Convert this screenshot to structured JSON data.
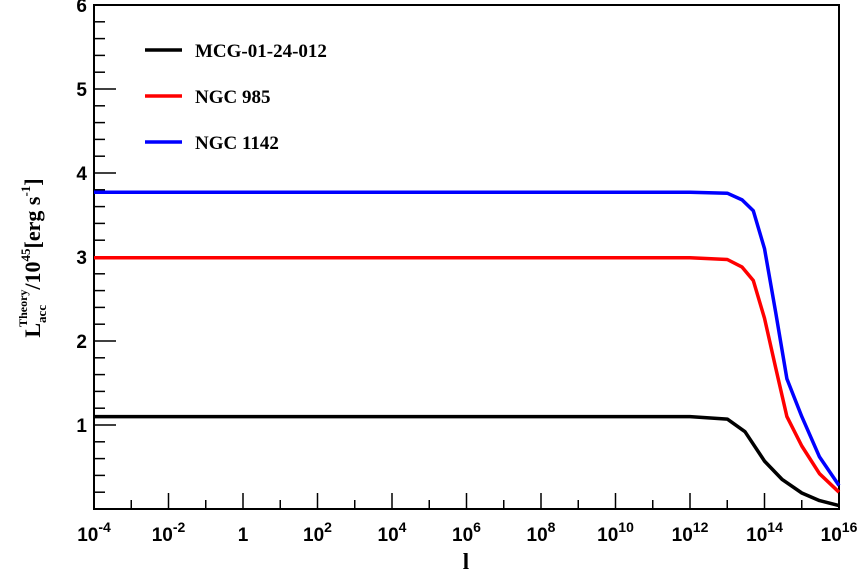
{
  "chart_data": {
    "type": "line",
    "xlabel": "l",
    "ylabel": {
      "main": "L",
      "sub": "acc",
      "sup": "Theory",
      "rest": "/10",
      "exp": "45",
      "unit": "[erg s",
      "unit_exp": "-1",
      "close": "]"
    },
    "xscale": "log",
    "xlim": [
      0.0001,
      1e+16
    ],
    "ylim": [
      0,
      6
    ],
    "x_ticks": [
      {
        "value": 0.0001,
        "base": "10",
        "exp": "-4"
      },
      {
        "value": 0.01,
        "base": "10",
        "exp": "-2"
      },
      {
        "value": 1,
        "base": "1",
        "exp": ""
      },
      {
        "value": 100.0,
        "base": "10",
        "exp": "2"
      },
      {
        "value": 10000.0,
        "base": "10",
        "exp": "4"
      },
      {
        "value": 1000000.0,
        "base": "10",
        "exp": "6"
      },
      {
        "value": 100000000.0,
        "base": "10",
        "exp": "8"
      },
      {
        "value": 10000000000.0,
        "base": "10",
        "exp": "10"
      },
      {
        "value": 1000000000000.0,
        "base": "10",
        "exp": "12"
      },
      {
        "value": 100000000000000.0,
        "base": "10",
        "exp": "14"
      },
      {
        "value": 1e+16,
        "base": "10",
        "exp": "16"
      }
    ],
    "y_ticks": [
      "1",
      "2",
      "3",
      "4",
      "5",
      "6"
    ],
    "grid": false,
    "legend_position": "top-left",
    "series": [
      {
        "name": "MCG-01-24-012",
        "color": "#000000",
        "x": [
          0.0001,
          1000000000000.0,
          10000000000000.0,
          30000000000000.0,
          100000000000000.0,
          300000000000000.0,
          1000000000000000.0,
          3000000000000000.0,
          1e+16
        ],
        "y": [
          1.1,
          1.1,
          1.07,
          0.92,
          0.57,
          0.35,
          0.19,
          0.1,
          0.04
        ]
      },
      {
        "name": "NGC 985",
        "color": "#ff0000",
        "x": [
          0.0001,
          1000000000000.0,
          10000000000000.0,
          25000000000000.0,
          50000000000000.0,
          100000000000000.0,
          200000000000000.0,
          400000000000000.0,
          1000000000000000.0,
          3000000000000000.0,
          1e+16
        ],
        "y": [
          2.99,
          2.99,
          2.97,
          2.88,
          2.72,
          2.27,
          1.68,
          1.1,
          0.75,
          0.42,
          0.2
        ]
      },
      {
        "name": "NGC 1142",
        "color": "#0000ff",
        "x": [
          0.0001,
          1000000000000.0,
          10000000000000.0,
          25000000000000.0,
          50000000000000.0,
          100000000000000.0,
          200000000000000.0,
          400000000000000.0,
          1000000000000000.0,
          3000000000000000.0,
          1e+16
        ],
        "y": [
          3.77,
          3.77,
          3.76,
          3.68,
          3.55,
          3.1,
          2.34,
          1.55,
          1.1,
          0.62,
          0.28
        ]
      }
    ]
  }
}
